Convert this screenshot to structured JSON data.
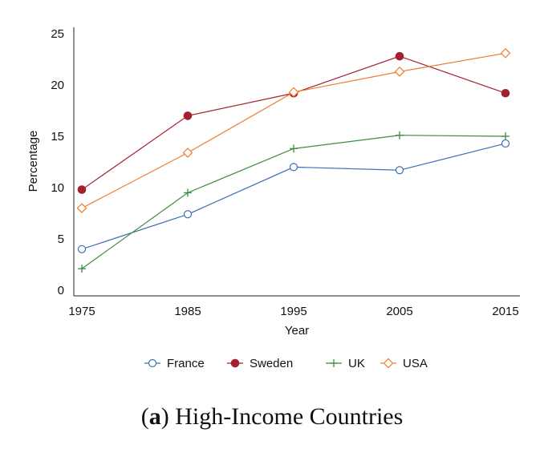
{
  "chart_data": {
    "type": "line",
    "title": "",
    "xlabel": "Year",
    "ylabel": "Percentage",
    "x": [
      1975,
      1985,
      1995,
      2005,
      2015
    ],
    "xticks": [
      "1975",
      "1985",
      "1995",
      "2005",
      "2015"
    ],
    "yticks": [
      "0",
      "5",
      "10",
      "15",
      "20",
      "25"
    ],
    "xlim": [
      1975,
      2015
    ],
    "ylim": [
      0,
      25
    ],
    "grid": false,
    "legend_position": "bottom",
    "series": [
      {
        "name": "France",
        "color": "#3b6fb6",
        "marker": "circle-open",
        "values": [
          4.0,
          7.4,
          12.0,
          11.7,
          14.3
        ]
      },
      {
        "name": "Sweden",
        "color": "#a4202e",
        "marker": "circle-filled",
        "values": [
          9.8,
          17.0,
          19.2,
          22.8,
          19.2
        ]
      },
      {
        "name": "UK",
        "color": "#3e8c3e",
        "marker": "plus",
        "values": [
          2.1,
          9.5,
          13.8,
          15.1,
          15.0
        ]
      },
      {
        "name": "USA",
        "color": "#ef7b2e",
        "marker": "diamond-open",
        "values": [
          8.0,
          13.4,
          19.3,
          21.3,
          23.1
        ]
      }
    ]
  },
  "caption": {
    "open_paren": "(",
    "label": "a",
    "close_paren": ")",
    "text": " High-Income Countries"
  }
}
